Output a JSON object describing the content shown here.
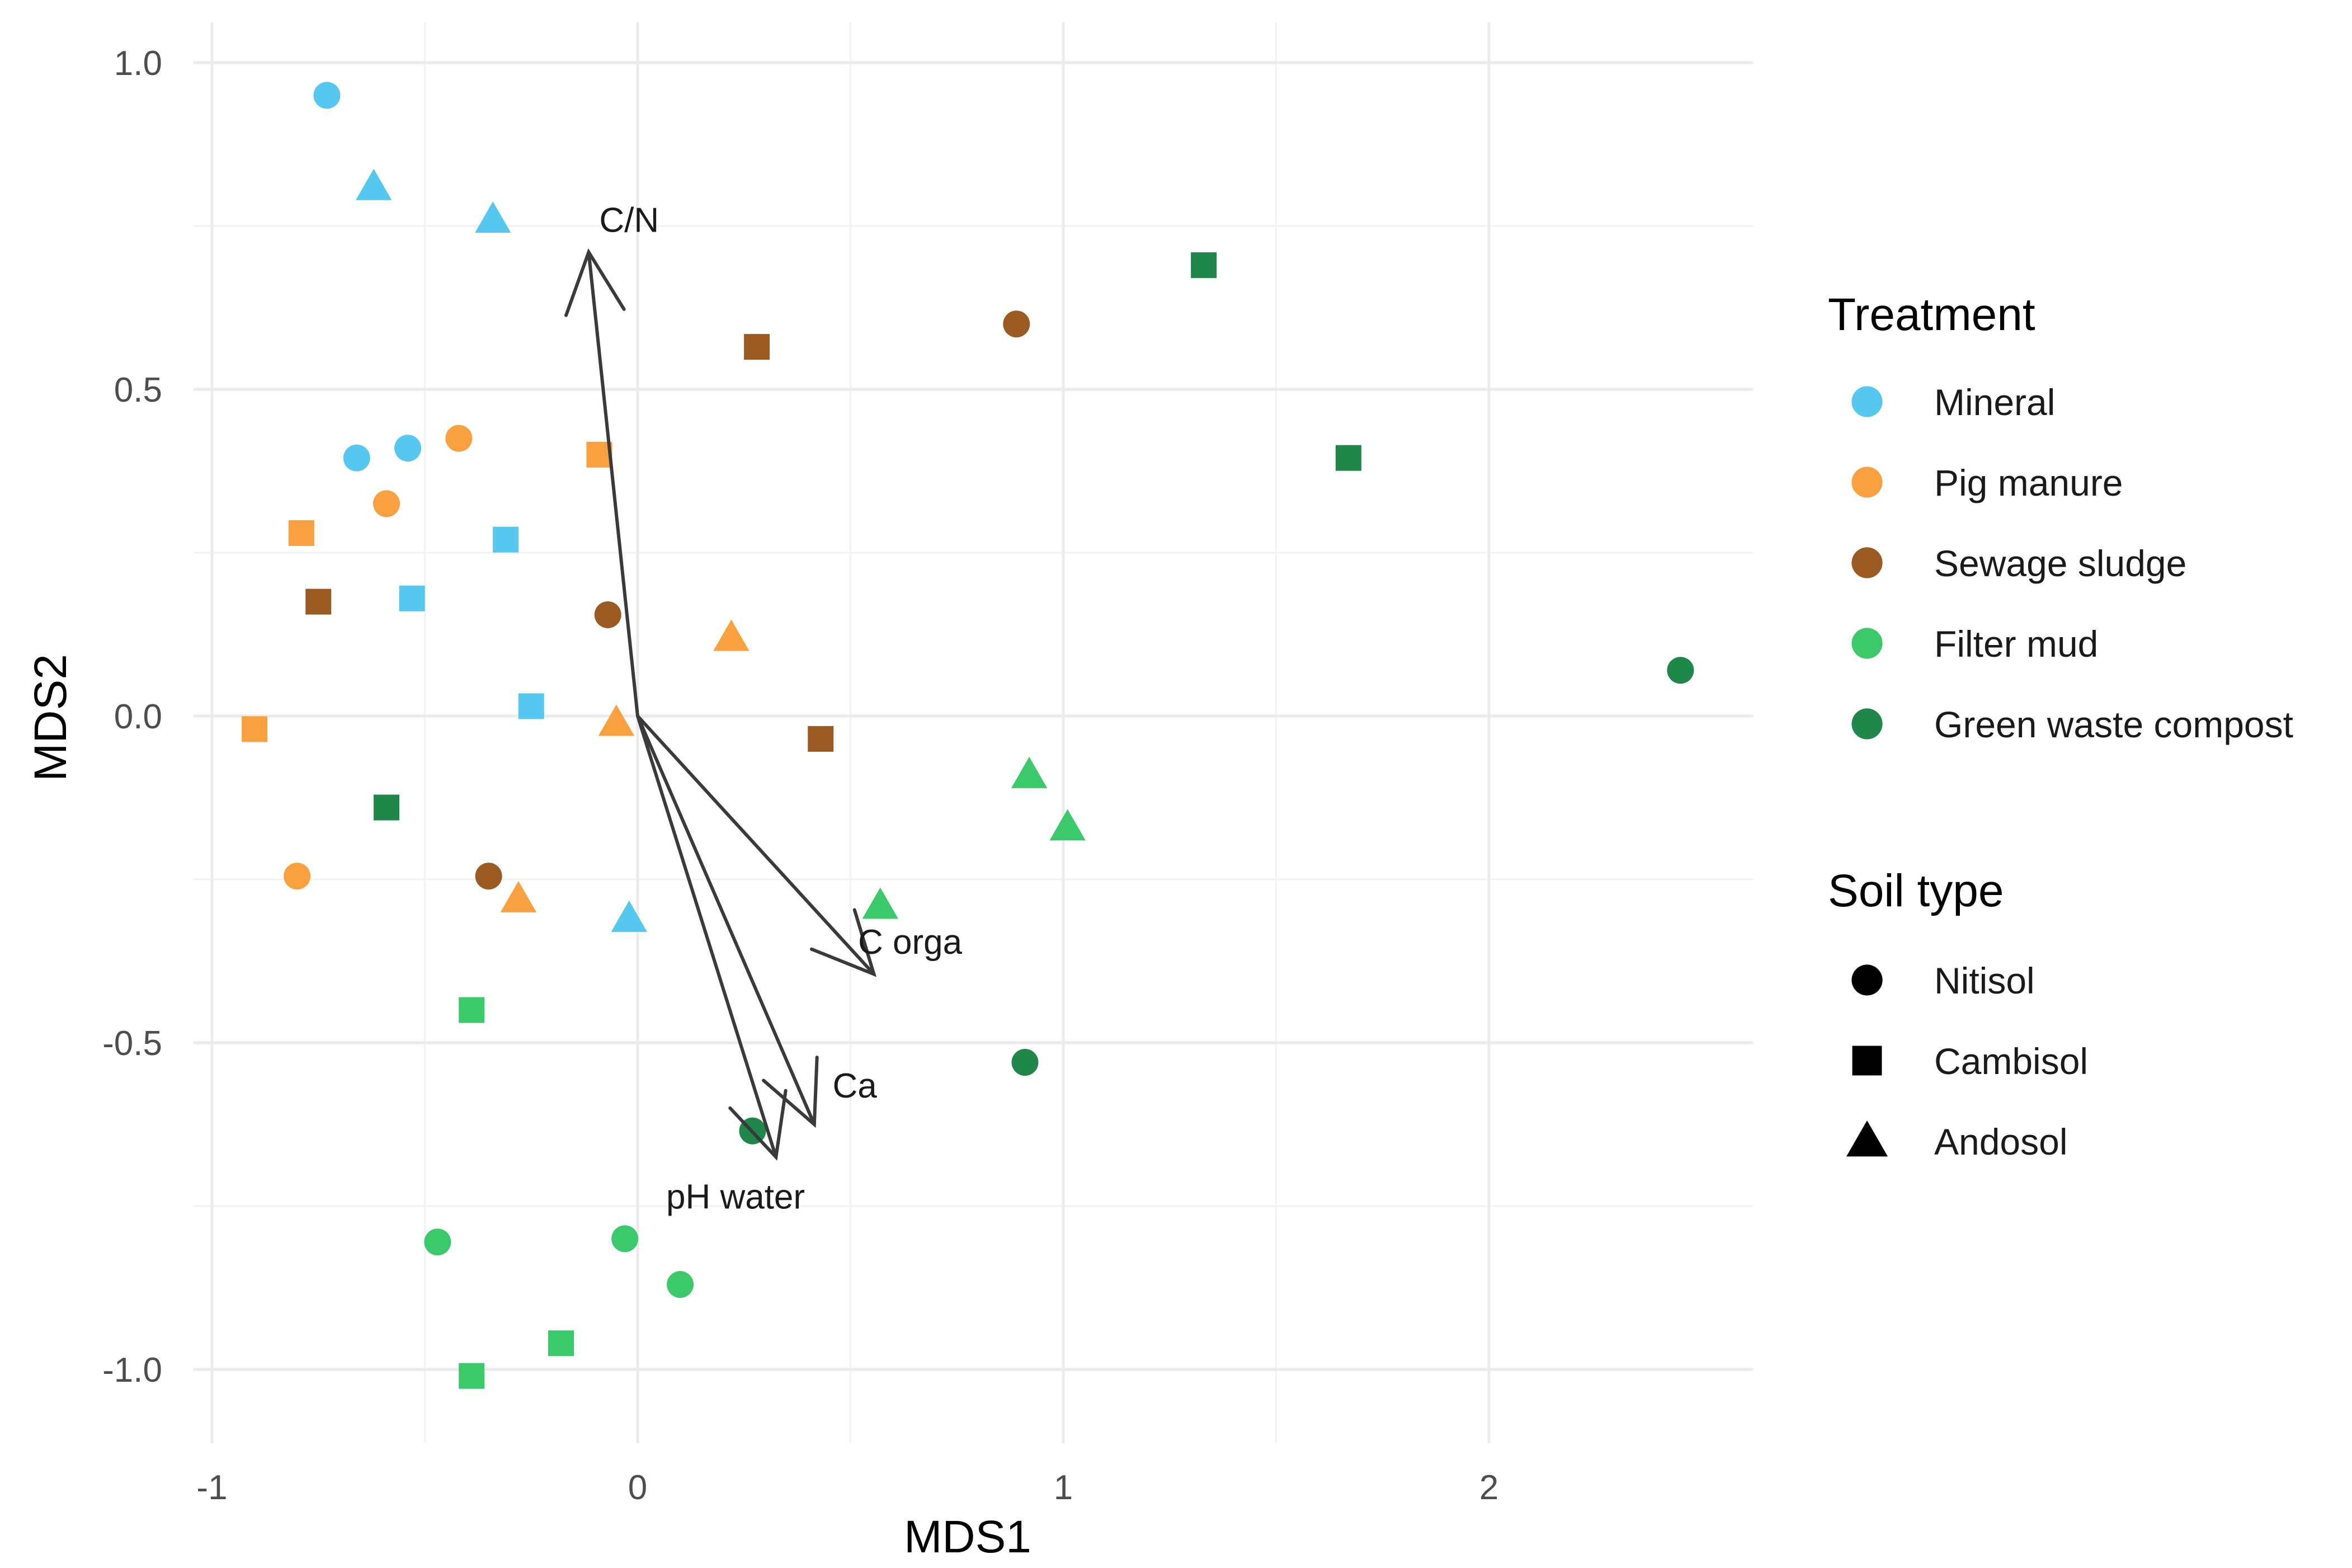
{
  "chart_data": {
    "type": "scatter",
    "title": "",
    "xlabel": "MDS1",
    "ylabel": "MDS2",
    "xlim": [
      -1.0,
      2.5
    ],
    "ylim": [
      -1.0,
      1.0
    ],
    "x_ticks": [
      -1,
      0,
      1,
      2
    ],
    "x_tick_labels": [
      "-1",
      "0",
      "1",
      "2"
    ],
    "y_ticks": [
      -1.0,
      -0.5,
      0.0,
      0.5,
      1.0
    ],
    "y_tick_labels": [
      "-1.0",
      "-0.5",
      "0.0",
      "0.5",
      "1.0"
    ],
    "grid": true,
    "legend_position": "right",
    "treatments": [
      {
        "name": "Mineral",
        "color": "#56c7ef"
      },
      {
        "name": "Pig manure",
        "color": "#f9a040"
      },
      {
        "name": "Sewage sludge",
        "color": "#9b5a22"
      },
      {
        "name": "Filter mud",
        "color": "#3cc96b"
      },
      {
        "name": "Green waste compost",
        "color": "#1e8749"
      }
    ],
    "soil_types": [
      {
        "name": "Nitisol",
        "shape": "circle"
      },
      {
        "name": "Cambisol",
        "shape": "square"
      },
      {
        "name": "Andosol",
        "shape": "triangle"
      }
    ],
    "legend_titles": {
      "treatment": "Treatment",
      "soil": "Soil type"
    },
    "points": [
      {
        "x": -0.73,
        "y": 0.95,
        "treatment": "Mineral",
        "soil": "Nitisol"
      },
      {
        "x": -0.62,
        "y": 0.81,
        "treatment": "Mineral",
        "soil": "Andosol"
      },
      {
        "x": -0.34,
        "y": 0.76,
        "treatment": "Mineral",
        "soil": "Andosol"
      },
      {
        "x": -0.66,
        "y": 0.395,
        "treatment": "Mineral",
        "soil": "Nitisol"
      },
      {
        "x": -0.54,
        "y": 0.41,
        "treatment": "Mineral",
        "soil": "Nitisol"
      },
      {
        "x": -0.31,
        "y": 0.27,
        "treatment": "Mineral",
        "soil": "Cambisol"
      },
      {
        "x": -0.53,
        "y": 0.18,
        "treatment": "Mineral",
        "soil": "Cambisol"
      },
      {
        "x": -0.25,
        "y": 0.015,
        "treatment": "Mineral",
        "soil": "Cambisol"
      },
      {
        "x": -0.02,
        "y": -0.31,
        "treatment": "Mineral",
        "soil": "Andosol"
      },
      {
        "x": -0.42,
        "y": 0.425,
        "treatment": "Pig manure",
        "soil": "Nitisol"
      },
      {
        "x": -0.59,
        "y": 0.325,
        "treatment": "Pig manure",
        "soil": "Nitisol"
      },
      {
        "x": -0.79,
        "y": 0.28,
        "treatment": "Pig manure",
        "soil": "Cambisol"
      },
      {
        "x": -0.09,
        "y": 0.4,
        "treatment": "Pig manure",
        "soil": "Cambisol"
      },
      {
        "x": 0.22,
        "y": 0.12,
        "treatment": "Pig manure",
        "soil": "Andosol"
      },
      {
        "x": -0.05,
        "y": -0.01,
        "treatment": "Pig manure",
        "soil": "Andosol"
      },
      {
        "x": -0.9,
        "y": -0.02,
        "treatment": "Pig manure",
        "soil": "Cambisol"
      },
      {
        "x": -0.8,
        "y": -0.245,
        "treatment": "Pig manure",
        "soil": "Nitisol"
      },
      {
        "x": -0.28,
        "y": -0.28,
        "treatment": "Pig manure",
        "soil": "Andosol"
      },
      {
        "x": 0.89,
        "y": 0.6,
        "treatment": "Sewage sludge",
        "soil": "Nitisol"
      },
      {
        "x": 0.28,
        "y": 0.565,
        "treatment": "Sewage sludge",
        "soil": "Cambisol"
      },
      {
        "x": -0.75,
        "y": 0.175,
        "treatment": "Sewage sludge",
        "soil": "Cambisol"
      },
      {
        "x": -0.07,
        "y": 0.155,
        "treatment": "Sewage sludge",
        "soil": "Nitisol"
      },
      {
        "x": 0.43,
        "y": -0.035,
        "treatment": "Sewage sludge",
        "soil": "Cambisol"
      },
      {
        "x": -0.35,
        "y": -0.245,
        "treatment": "Sewage sludge",
        "soil": "Nitisol"
      },
      {
        "x": 0.92,
        "y": -0.09,
        "treatment": "Filter mud",
        "soil": "Andosol"
      },
      {
        "x": 1.01,
        "y": -0.17,
        "treatment": "Filter mud",
        "soil": "Andosol"
      },
      {
        "x": 0.57,
        "y": -0.29,
        "treatment": "Filter mud",
        "soil": "Andosol"
      },
      {
        "x": -0.39,
        "y": -0.45,
        "treatment": "Filter mud",
        "soil": "Cambisol"
      },
      {
        "x": -0.47,
        "y": -0.805,
        "treatment": "Filter mud",
        "soil": "Nitisol"
      },
      {
        "x": -0.03,
        "y": -0.8,
        "treatment": "Filter mud",
        "soil": "Nitisol"
      },
      {
        "x": 0.1,
        "y": -0.87,
        "treatment": "Filter mud",
        "soil": "Nitisol"
      },
      {
        "x": -0.18,
        "y": -0.96,
        "treatment": "Filter mud",
        "soil": "Cambisol"
      },
      {
        "x": -0.39,
        "y": -1.01,
        "treatment": "Filter mud",
        "soil": "Cambisol"
      },
      {
        "x": 1.33,
        "y": 0.69,
        "treatment": "Green waste compost",
        "soil": "Cambisol"
      },
      {
        "x": 1.67,
        "y": 0.395,
        "treatment": "Green waste compost",
        "soil": "Cambisol"
      },
      {
        "x": 2.45,
        "y": 0.07,
        "treatment": "Green waste compost",
        "soil": "Nitisol"
      },
      {
        "x": -0.59,
        "y": -0.14,
        "treatment": "Green waste compost",
        "soil": "Cambisol"
      },
      {
        "x": 0.91,
        "y": -0.53,
        "treatment": "Green waste compost",
        "soil": "Nitisol"
      },
      {
        "x": 0.27,
        "y": -0.635,
        "treatment": "Green waste compost",
        "soil": "Nitisol"
      }
    ],
    "vectors": [
      {
        "name": "C/N",
        "x": -0.115,
        "y": 0.71,
        "label_x": -0.02,
        "label_y": 0.76
      },
      {
        "name": "C orga",
        "x": 0.555,
        "y": -0.395,
        "label_x": 0.64,
        "label_y": -0.345
      },
      {
        "name": "Ca",
        "x": 0.415,
        "y": -0.625,
        "label_x": 0.51,
        "label_y": -0.565
      },
      {
        "name": "pH water",
        "x": 0.325,
        "y": -0.675,
        "label_x": 0.23,
        "label_y": -0.735
      }
    ]
  }
}
